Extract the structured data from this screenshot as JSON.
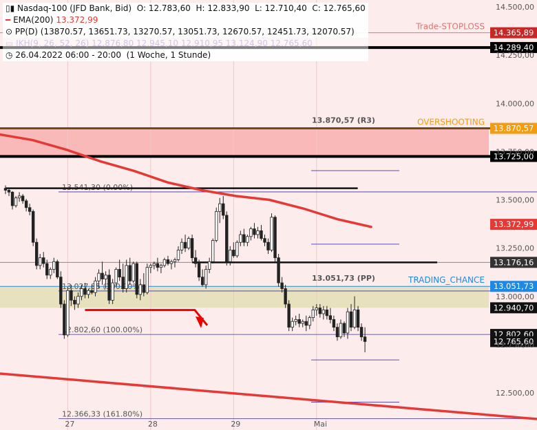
{
  "header": {
    "symbol": "Nasdaq-100 (JFD Bank, Bid)",
    "o": "O: 12.783,60",
    "h": "H: 12.833,90",
    "l": "L: 12.710,40",
    "c": "C: 12.765,60",
    "ema_label": "EMA(200)",
    "ema_value": "13.372,99",
    "pp_label": "PP(D)",
    "pp_values": "(13870.57, 13651.73, 13270.57, 13051.73, 12670.57, 12451.73, 12070.57)",
    "ikh_text": "IKH(9, 26, 52, 26) 12.876,80 12.945,10 12.910,95 13.124,90 12.765,60",
    "date_range": "26.04.2022 06:00 - 20:00",
    "range_note": "(1 Woche, 1 Stunde)"
  },
  "colors": {
    "background": "#fdecec",
    "ema": "#e53935",
    "black_line": "#000000",
    "orange": "#f39c12",
    "blue": "#1e88e5",
    "purple": "#5c4bb5",
    "trend": "#e53935",
    "zone_olive": "#e6e0b8",
    "zone_red": "#f8b4b4"
  },
  "chart_data": {
    "type": "candlestick",
    "ylim": [
      12400,
      14550
    ],
    "y_ticks": [
      "14.500,00",
      "14.250,00",
      "14.000,00",
      "13.750,00",
      "13.500,00",
      "13.250,00",
      "13.000,00",
      "12.750,00",
      "12.500,00"
    ],
    "y_tick_values": [
      14500,
      14250,
      14000,
      13750,
      13500,
      13250,
      13000,
      12750,
      12500
    ],
    "x_ticks": [
      {
        "label": "27",
        "i": 18
      },
      {
        "label": "28",
        "i": 42
      },
      {
        "label": "29",
        "i": 66
      },
      {
        "label": "Mai",
        "i": 90
      }
    ],
    "candles": [
      [
        13560,
        13575,
        13530,
        13550
      ],
      [
        13550,
        13560,
        13520,
        13540
      ],
      [
        13540,
        13545,
        13450,
        13470
      ],
      [
        13470,
        13520,
        13460,
        13510
      ],
      [
        13510,
        13540,
        13490,
        13520
      ],
      [
        13520,
        13530,
        13480,
        13495
      ],
      [
        13495,
        13505,
        13440,
        13460
      ],
      [
        13460,
        13480,
        13420,
        13440
      ],
      [
        13440,
        13450,
        13260,
        13280
      ],
      [
        13280,
        13300,
        13140,
        13160
      ],
      [
        13160,
        13220,
        13140,
        13200
      ],
      [
        13200,
        13230,
        13150,
        13170
      ],
      [
        13170,
        13190,
        13090,
        13110
      ],
      [
        13110,
        13150,
        13090,
        13140
      ],
      [
        13140,
        13200,
        13120,
        13180
      ],
      [
        13180,
        13190,
        13090,
        13100
      ],
      [
        13100,
        13130,
        12940,
        12960
      ],
      [
        12960,
        12980,
        12780,
        12800
      ],
      [
        12800,
        13050,
        12790,
        13030
      ],
      [
        13030,
        13060,
        12950,
        12980
      ],
      [
        12980,
        13000,
        12930,
        12960
      ],
      [
        12960,
        13020,
        12940,
        13000
      ],
      [
        13000,
        13060,
        12980,
        13040
      ],
      [
        13040,
        13070,
        12990,
        13010
      ],
      [
        13010,
        13040,
        12990,
        13030
      ],
      [
        13030,
        13060,
        13010,
        13020
      ],
      [
        13020,
        13100,
        13000,
        13080
      ],
      [
        13080,
        13140,
        13040,
        13120
      ],
      [
        13120,
        13180,
        13060,
        13090
      ],
      [
        13090,
        13130,
        13040,
        13110
      ],
      [
        13110,
        13140,
        12960,
        12980
      ],
      [
        12980,
        13090,
        12960,
        13070
      ],
      [
        13070,
        13150,
        13050,
        13140
      ],
      [
        13140,
        13190,
        13080,
        13100
      ],
      [
        13100,
        13170,
        13020,
        13040
      ],
      [
        13040,
        13190,
        13020,
        13160
      ],
      [
        13160,
        13200,
        13060,
        13080
      ],
      [
        13080,
        13180,
        13070,
        13170
      ],
      [
        13170,
        13180,
        12990,
        13010
      ],
      [
        13010,
        13090,
        12980,
        13060
      ],
      [
        13060,
        13120,
        13000,
        13020
      ],
      [
        13020,
        13170,
        13010,
        13150
      ],
      [
        13150,
        13170,
        13120,
        13160
      ],
      [
        13160,
        13180,
        13140,
        13170
      ],
      [
        13170,
        13200,
        13130,
        13150
      ],
      [
        13150,
        13170,
        13120,
        13160
      ],
      [
        13160,
        13200,
        13150,
        13190
      ],
      [
        13190,
        13210,
        13160,
        13170
      ],
      [
        13170,
        13190,
        13140,
        13180
      ],
      [
        13180,
        13200,
        13150,
        13190
      ],
      [
        13190,
        13260,
        13180,
        13240
      ],
      [
        13240,
        13300,
        13220,
        13280
      ],
      [
        13280,
        13320,
        13230,
        13250
      ],
      [
        13250,
        13310,
        13240,
        13300
      ],
      [
        13300,
        13320,
        13180,
        13200
      ],
      [
        13200,
        13240,
        13150,
        13170
      ],
      [
        13170,
        13190,
        13080,
        13100
      ],
      [
        13100,
        13140,
        13050,
        13060
      ],
      [
        13060,
        13160,
        13040,
        13140
      ],
      [
        13140,
        13200,
        13120,
        13180
      ],
      [
        13180,
        13300,
        13170,
        13290
      ],
      [
        13290,
        13460,
        13280,
        13440
      ],
      [
        13440,
        13510,
        13380,
        13480
      ],
      [
        13480,
        13520,
        13400,
        13420
      ],
      [
        13420,
        13440,
        13160,
        13180
      ],
      [
        13180,
        13260,
        13160,
        13240
      ],
      [
        13240,
        13280,
        13200,
        13210
      ],
      [
        13210,
        13290,
        13200,
        13280
      ],
      [
        13280,
        13340,
        13260,
        13320
      ],
      [
        13320,
        13350,
        13260,
        13280
      ],
      [
        13280,
        13320,
        13260,
        13310
      ],
      [
        13310,
        13360,
        13290,
        13350
      ],
      [
        13350,
        13380,
        13300,
        13320
      ],
      [
        13320,
        13360,
        13300,
        13340
      ],
      [
        13340,
        13370,
        13290,
        13300
      ],
      [
        13300,
        13320,
        13260,
        13280
      ],
      [
        13280,
        13300,
        13220,
        13240
      ],
      [
        13240,
        13430,
        13230,
        13410
      ],
      [
        13410,
        13420,
        13180,
        13200
      ],
      [
        13200,
        13220,
        13050,
        13070
      ],
      [
        13070,
        13100,
        13020,
        13040
      ],
      [
        13040,
        13060,
        12940,
        12960
      ],
      [
        12960,
        12980,
        12820,
        12840
      ],
      [
        12840,
        12890,
        12820,
        12870
      ],
      [
        12870,
        12900,
        12850,
        12880
      ],
      [
        12880,
        12910,
        12840,
        12860
      ],
      [
        12860,
        12880,
        12840,
        12870
      ],
      [
        12870,
        12900,
        12820,
        12850
      ],
      [
        12850,
        12900,
        12830,
        12890
      ],
      [
        12890,
        12950,
        12870,
        12930
      ],
      [
        12930,
        12960,
        12900,
        12940
      ],
      [
        12940,
        12960,
        12890,
        12910
      ],
      [
        12910,
        12950,
        12880,
        12930
      ],
      [
        12930,
        12950,
        12880,
        12900
      ],
      [
        12900,
        12940,
        12860,
        12880
      ],
      [
        12880,
        12900,
        12820,
        12840
      ],
      [
        12840,
        12860,
        12770,
        12790
      ],
      [
        12790,
        12880,
        12780,
        12860
      ],
      [
        12860,
        12870,
        12790,
        12810
      ],
      [
        12810,
        12940,
        12780,
        12920
      ],
      [
        12920,
        12960,
        12820,
        12840
      ],
      [
        12840,
        13000,
        12830,
        12930
      ],
      [
        12930,
        12950,
        12820,
        12840
      ],
      [
        12840,
        12860,
        12770,
        12790
      ],
      [
        12790,
        12840,
        12710,
        12766
      ]
    ],
    "ema_points": [
      [
        0,
        13840
      ],
      [
        10,
        13810
      ],
      [
        20,
        13760
      ],
      [
        30,
        13700
      ],
      [
        40,
        13650
      ],
      [
        50,
        13590
      ],
      [
        60,
        13550
      ],
      [
        70,
        13520
      ],
      [
        80,
        13500
      ],
      [
        90,
        13455
      ],
      [
        100,
        13400
      ],
      [
        110,
        13360
      ]
    ],
    "horizontal_levels": [
      {
        "value": 14365.89,
        "label": "14.365,89",
        "style": "redthin",
        "tag": "Trade-STOPLOSS"
      },
      {
        "value": 14289.4,
        "label": "14.289,40",
        "style": "blackthick"
      },
      {
        "value": 13870.57,
        "label": "13.870,57",
        "style": "orange",
        "tag": "OVERSHOOTING",
        "annotation": "13.870,57 (R3)"
      },
      {
        "value": 13725.0,
        "label": "13.725,00",
        "style": "blackthick"
      },
      {
        "value": 13372.99,
        "label": "13.372,99",
        "style": "ema"
      },
      {
        "value": 13176.16,
        "label": "13.176,16",
        "style": "gray"
      },
      {
        "value": 13051.73,
        "label": "13.051,73",
        "style": "blue",
        "tag": "TRADING_CHANCE",
        "annotation": "13.051,73 (PP)"
      },
      {
        "value": 12940.7,
        "label": "12.940,70",
        "style": "dark"
      },
      {
        "value": 12802.6,
        "label": "12.802,60",
        "style": "dark"
      },
      {
        "value": 12765.6,
        "label": "12.765,60",
        "style": "dark"
      }
    ],
    "fib_levels": [
      {
        "value": 13541.3,
        "label": "13.541,30 (0.00%)"
      },
      {
        "value": 13027.85,
        "label": "13.027,85 (100.00%)"
      },
      {
        "value": 12802.6,
        "label": "12.802,60 (100.00%)"
      },
      {
        "value": 12366.33,
        "label": "12.366,33 (161.80%)"
      }
    ],
    "pivot_short_lines": [
      13651.73,
      13270.57,
      12670.57,
      12451.73
    ],
    "black_segments": [
      {
        "value": 13560,
        "i0": 0,
        "i1": 80
      },
      {
        "value": 13176,
        "i0": 54,
        "i1": 103
      }
    ],
    "zones": [
      {
        "from": 13725,
        "to": 13870.57,
        "color": "zone_red"
      },
      {
        "from": 12940.7,
        "to": 13051.73,
        "color": "zone_olive"
      }
    ],
    "trend_line": {
      "x0": -5,
      "y0": 12600,
      "x1": 134,
      "y1": 12400
    },
    "red_arrow": {
      "i0": 23,
      "v0": 12940,
      "i1": 45,
      "v1": 12940,
      "i2": 48,
      "v2": 12800
    }
  }
}
